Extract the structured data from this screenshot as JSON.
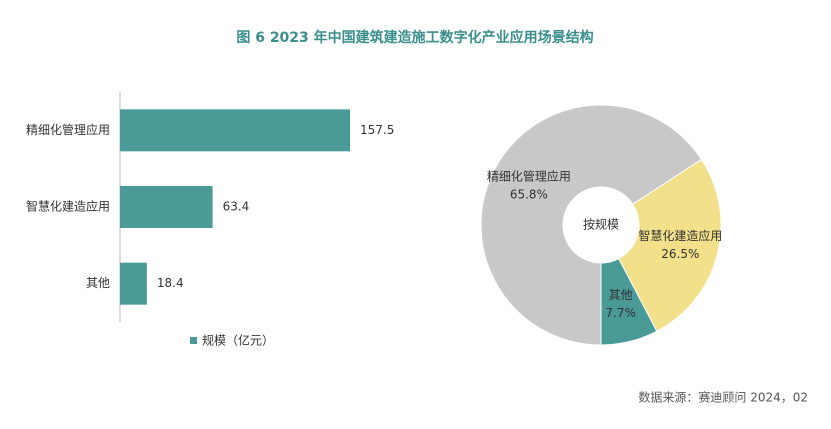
{
  "title": "图 6  2023 年中国建筑建造施工数字化产业应用场景结构",
  "source": "数据来源：赛迪顾问 2024，02",
  "chart_data": [
    {
      "type": "bar",
      "orientation": "horizontal",
      "categories": [
        "精细化管理应用",
        "智慧化建造应用",
        "其他"
      ],
      "series": [
        {
          "name": "规模（亿元）",
          "color": "#4a9a98",
          "values": [
            157.5,
            63.4,
            18.4
          ]
        }
      ]
    },
    {
      "type": "pie",
      "center_label": "按规模",
      "categories": [
        "精细化管理应用",
        "智慧化建造应用",
        "其他"
      ],
      "values": [
        65.8,
        26.5,
        7.7
      ],
      "value_labels": [
        "65.8%",
        "26.5%",
        "7.7%"
      ],
      "colors": [
        "#c8c8c8",
        "#f2e08a",
        "#4a9a98"
      ]
    }
  ]
}
